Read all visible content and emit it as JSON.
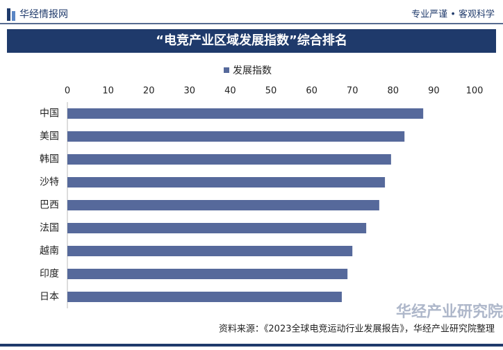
{
  "header": {
    "brand": "华经情报网",
    "slogan": "专业严谨 • 客观科学"
  },
  "chart_data": {
    "type": "bar",
    "orientation": "horizontal",
    "title": "“电竞产业区域发展指数”综合排名",
    "categories": [
      "中国",
      "美国",
      "韩国",
      "沙特",
      "巴西",
      "法国",
      "越南",
      "印度",
      "日本"
    ],
    "series": [
      {
        "name": "发展指数",
        "color": "#56699b",
        "values": [
          87.4,
          82.8,
          79.5,
          78,
          76.6,
          73.4,
          70,
          68.8,
          67.4
        ]
      }
    ],
    "xlim": [
      0,
      100
    ],
    "xticks": [
      0,
      10,
      20,
      30,
      40,
      50,
      60,
      70,
      80,
      90,
      100
    ],
    "grid": false
  },
  "footer": {
    "source": "资料来源：《2023全球电竞运动行业发展报告》，华经产业研究院整理",
    "watermark": "华经产业研究院"
  }
}
